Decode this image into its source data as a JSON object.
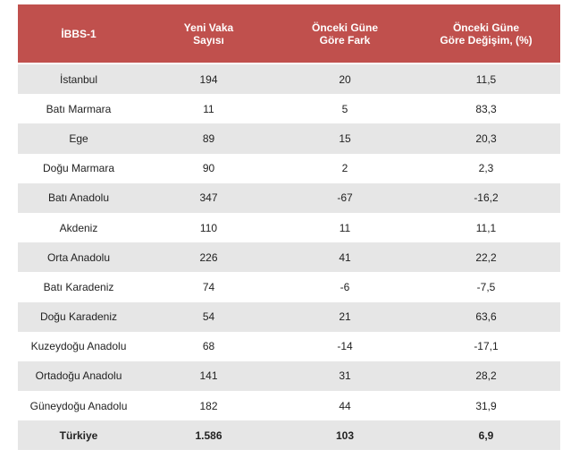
{
  "header": {
    "col1": "İBBS-1",
    "col2": "Yeni Vaka\nSayısı",
    "col3": "Önceki Güne\nGöre Fark",
    "col4": "Önceki Güne\nGöre Değişim, (%)"
  },
  "rows": [
    {
      "region": "İstanbul",
      "new_cases": "194",
      "diff": "20",
      "change": "11,5"
    },
    {
      "region": "Batı Marmara",
      "new_cases": "11",
      "diff": "5",
      "change": "83,3"
    },
    {
      "region": "Ege",
      "new_cases": "89",
      "diff": "15",
      "change": "20,3"
    },
    {
      "region": "Doğu Marmara",
      "new_cases": "90",
      "diff": "2",
      "change": "2,3"
    },
    {
      "region": "Batı Anadolu",
      "new_cases": "347",
      "diff": "-67",
      "change": "-16,2"
    },
    {
      "region": "Akdeniz",
      "new_cases": "110",
      "diff": "11",
      "change": "11,1"
    },
    {
      "region": "Orta Anadolu",
      "new_cases": "226",
      "diff": "41",
      "change": "22,2"
    },
    {
      "region": "Batı Karadeniz",
      "new_cases": "74",
      "diff": "-6",
      "change": "-7,5"
    },
    {
      "region": "Doğu Karadeniz",
      "new_cases": "54",
      "diff": "21",
      "change": "63,6"
    },
    {
      "region": "Kuzeydoğu Anadolu",
      "new_cases": "68",
      "diff": "-14",
      "change": "-17,1"
    },
    {
      "region": "Ortadoğu Anadolu",
      "new_cases": "141",
      "diff": "31",
      "change": "28,2"
    },
    {
      "region": "Güneydoğu Anadolu",
      "new_cases": "182",
      "diff": "44",
      "change": "31,9"
    },
    {
      "region": "Türkiye",
      "new_cases": "1.586",
      "diff": "103",
      "change": "6,9"
    }
  ],
  "colors": {
    "header_bg": "#c0504d",
    "header_text": "#ffffff",
    "row_shade": "#e6e6e6"
  }
}
